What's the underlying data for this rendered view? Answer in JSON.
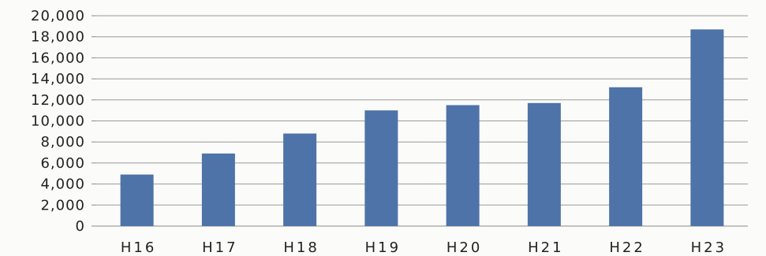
{
  "chart_data": {
    "type": "bar",
    "title": "",
    "categories": [
      "H16",
      "H17",
      "H18",
      "H19",
      "H20",
      "H21",
      "H22",
      "H23"
    ],
    "values": [
      4900,
      6900,
      8800,
      11000,
      11500,
      11700,
      13200,
      18700
    ],
    "xlabel": "",
    "ylabel": "",
    "ylim": [
      0,
      20000
    ],
    "yticks": [
      "0",
      "2,000",
      "4,000",
      "6,000",
      "8,000",
      "10,000",
      "12,000",
      "14,000",
      "16,000",
      "18,000",
      "20,000"
    ],
    "grid": true,
    "legend": "none",
    "bar_color": "#4e73a8"
  }
}
